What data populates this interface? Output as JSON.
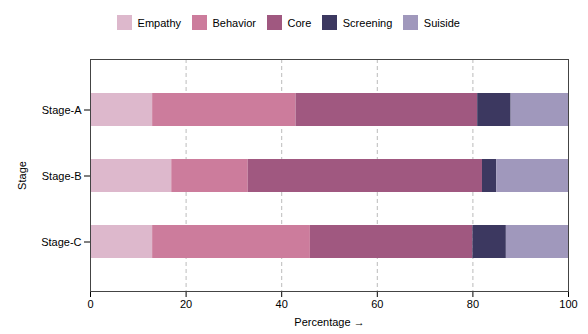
{
  "chart_data": {
    "type": "bar",
    "orientation": "horizontal",
    "stacked": true,
    "categories": [
      "Stage-A",
      "Stage-B",
      "Stage-C"
    ],
    "series": [
      {
        "name": "Empathy",
        "color": "#ddb8cc",
        "values": [
          13,
          17,
          13
        ]
      },
      {
        "name": "Behavior",
        "color": "#cc7c9c",
        "values": [
          30,
          16,
          33
        ]
      },
      {
        "name": "Core",
        "color": "#a05880",
        "values": [
          38,
          49,
          34
        ]
      },
      {
        "name": "Screening",
        "color": "#3c3860",
        "values": [
          7,
          3,
          7
        ]
      },
      {
        "name": "Suiside",
        "color": "#a098bc",
        "values": [
          12,
          15,
          13
        ]
      }
    ],
    "xlabel": "Percentage",
    "ylabel": "Stage",
    "xlim": [
      0,
      100
    ],
    "xticks": [
      0,
      20,
      40,
      60,
      80,
      100
    ],
    "grid": true,
    "legend": "top"
  }
}
